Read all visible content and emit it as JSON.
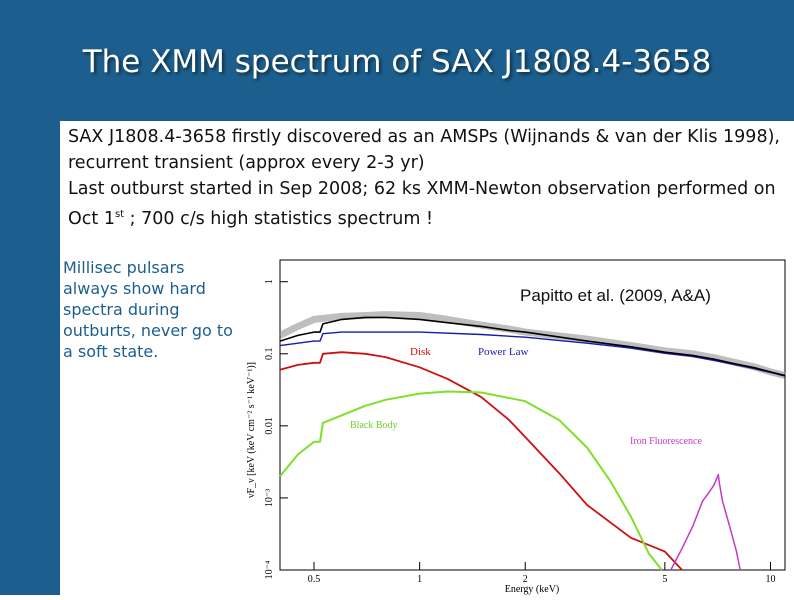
{
  "slide": {
    "title": "The XMM spectrum of SAX J1808.4-3658",
    "bullet_line_1": "SAX J1808.4-3658 firstly discovered as an AMSPs (Wijnands & van der Klis 1998), recurrent transient (approx every 2-3 yr)",
    "bullet_line_2_pre": "Last outburst started in Sep 2008; 62 ks XMM-Newton observation performed on Oct 1",
    "bullet_line_2_sup": "st",
    "bullet_line_2_post": " ; 700 c/s high statistics spectrum !",
    "side_note": "Millisec pulsars always show hard spectra during outburts, never go to a soft state.",
    "reference": "Papitto et al. (2009, A&A)"
  },
  "chart_data": {
    "type": "line",
    "xlabel": "Energy (keV)",
    "ylabel": "νF_ν [keV (keV cm⁻² s⁻¹ keV⁻¹)]",
    "x_scale": "log",
    "y_scale": "log",
    "xlim": [
      0.4,
      11
    ],
    "ylim": [
      0.0001,
      2
    ],
    "x_ticks": [
      {
        "value": 0.5,
        "label": "0.5"
      },
      {
        "value": 1,
        "label": "1"
      },
      {
        "value": 2,
        "label": "2"
      },
      {
        "value": 5,
        "label": "5"
      },
      {
        "value": 10,
        "label": "10"
      }
    ],
    "y_ticks": [
      {
        "value": 1,
        "label": "1"
      },
      {
        "value": 0.1,
        "label": "0.1"
      },
      {
        "value": 0.01,
        "label": "0.01"
      },
      {
        "value": 0.001,
        "label": "10⁻³"
      },
      {
        "value": 0.0001,
        "label": "10⁻⁴"
      }
    ],
    "annotations": [
      "Disk",
      "Power Law",
      "Black Body",
      "Iron Fluorescence"
    ],
    "colors": {
      "data": "#888888",
      "total": "#000000",
      "disk": "#cc1111",
      "powerlaw": "#1a1aaa",
      "blackbody": "#7ee02a",
      "iron": "#c43ac4"
    },
    "series": [
      {
        "key": "data",
        "x": [
          0.4,
          0.45,
          0.5,
          0.6,
          0.7,
          0.8,
          1.0,
          1.2,
          1.5,
          1.8,
          2.0,
          3.0,
          4.0,
          5.0,
          6.0,
          7.0,
          8.0,
          9.0,
          10.0,
          11.0
        ],
        "y": [
          0.18,
          0.24,
          0.3,
          0.33,
          0.34,
          0.35,
          0.34,
          0.3,
          0.25,
          0.22,
          0.2,
          0.16,
          0.13,
          0.11,
          0.1,
          0.087,
          0.075,
          0.066,
          0.056,
          0.05
        ]
      },
      {
        "key": "total",
        "x": [
          0.4,
          0.45,
          0.5,
          0.52,
          0.53,
          0.6,
          0.7,
          0.8,
          1.0,
          1.2,
          1.5,
          1.8,
          2.0,
          3.0,
          4.0,
          5.0,
          6.0,
          7.0,
          8.0,
          9.0,
          10.0,
          11.0
        ],
        "y": [
          0.15,
          0.18,
          0.2,
          0.2,
          0.26,
          0.3,
          0.32,
          0.32,
          0.3,
          0.27,
          0.24,
          0.21,
          0.2,
          0.15,
          0.125,
          0.105,
          0.095,
          0.083,
          0.072,
          0.064,
          0.056,
          0.05
        ]
      },
      {
        "key": "powerlaw",
        "x": [
          0.4,
          0.5,
          0.52,
          0.53,
          0.6,
          0.8,
          1.0,
          1.5,
          2.0,
          3.0,
          4.0,
          5.0,
          6.0,
          7.0,
          8.0,
          9.0,
          10.0,
          11.0
        ],
        "y": [
          0.13,
          0.15,
          0.15,
          0.19,
          0.2,
          0.2,
          0.2,
          0.185,
          0.17,
          0.14,
          0.12,
          0.102,
          0.092,
          0.08,
          0.07,
          0.062,
          0.055,
          0.049
        ]
      },
      {
        "key": "disk",
        "x": [
          0.4,
          0.45,
          0.5,
          0.52,
          0.53,
          0.6,
          0.7,
          0.8,
          1.0,
          1.2,
          1.5,
          1.8,
          2.0,
          2.5,
          3.0,
          4.0,
          5.0,
          5.6
        ],
        "y": [
          0.06,
          0.07,
          0.075,
          0.075,
          0.1,
          0.105,
          0.1,
          0.09,
          0.065,
          0.045,
          0.025,
          0.012,
          0.007,
          0.0022,
          0.0008,
          0.00028,
          0.00018,
          0.0001
        ]
      },
      {
        "key": "blackbody",
        "x": [
          0.4,
          0.45,
          0.5,
          0.52,
          0.53,
          0.6,
          0.7,
          0.8,
          1.0,
          1.2,
          1.5,
          2.0,
          2.5,
          3.0,
          3.5,
          4.0,
          4.5,
          4.9
        ],
        "y": [
          0.002,
          0.004,
          0.006,
          0.006,
          0.011,
          0.014,
          0.019,
          0.023,
          0.028,
          0.03,
          0.029,
          0.022,
          0.012,
          0.005,
          0.0017,
          0.00055,
          0.00017,
          0.0001
        ]
      },
      {
        "key": "iron",
        "x": [
          5.2,
          5.6,
          6.0,
          6.2,
          6.4,
          6.6,
          6.9,
          7.1,
          7.15,
          7.3,
          7.6,
          8.0,
          8.2
        ],
        "y": [
          0.0001,
          0.0002,
          0.0004,
          0.0006,
          0.0009,
          0.0011,
          0.0015,
          0.0021,
          0.0016,
          0.0009,
          0.00045,
          0.00018,
          0.0001
        ]
      }
    ]
  }
}
